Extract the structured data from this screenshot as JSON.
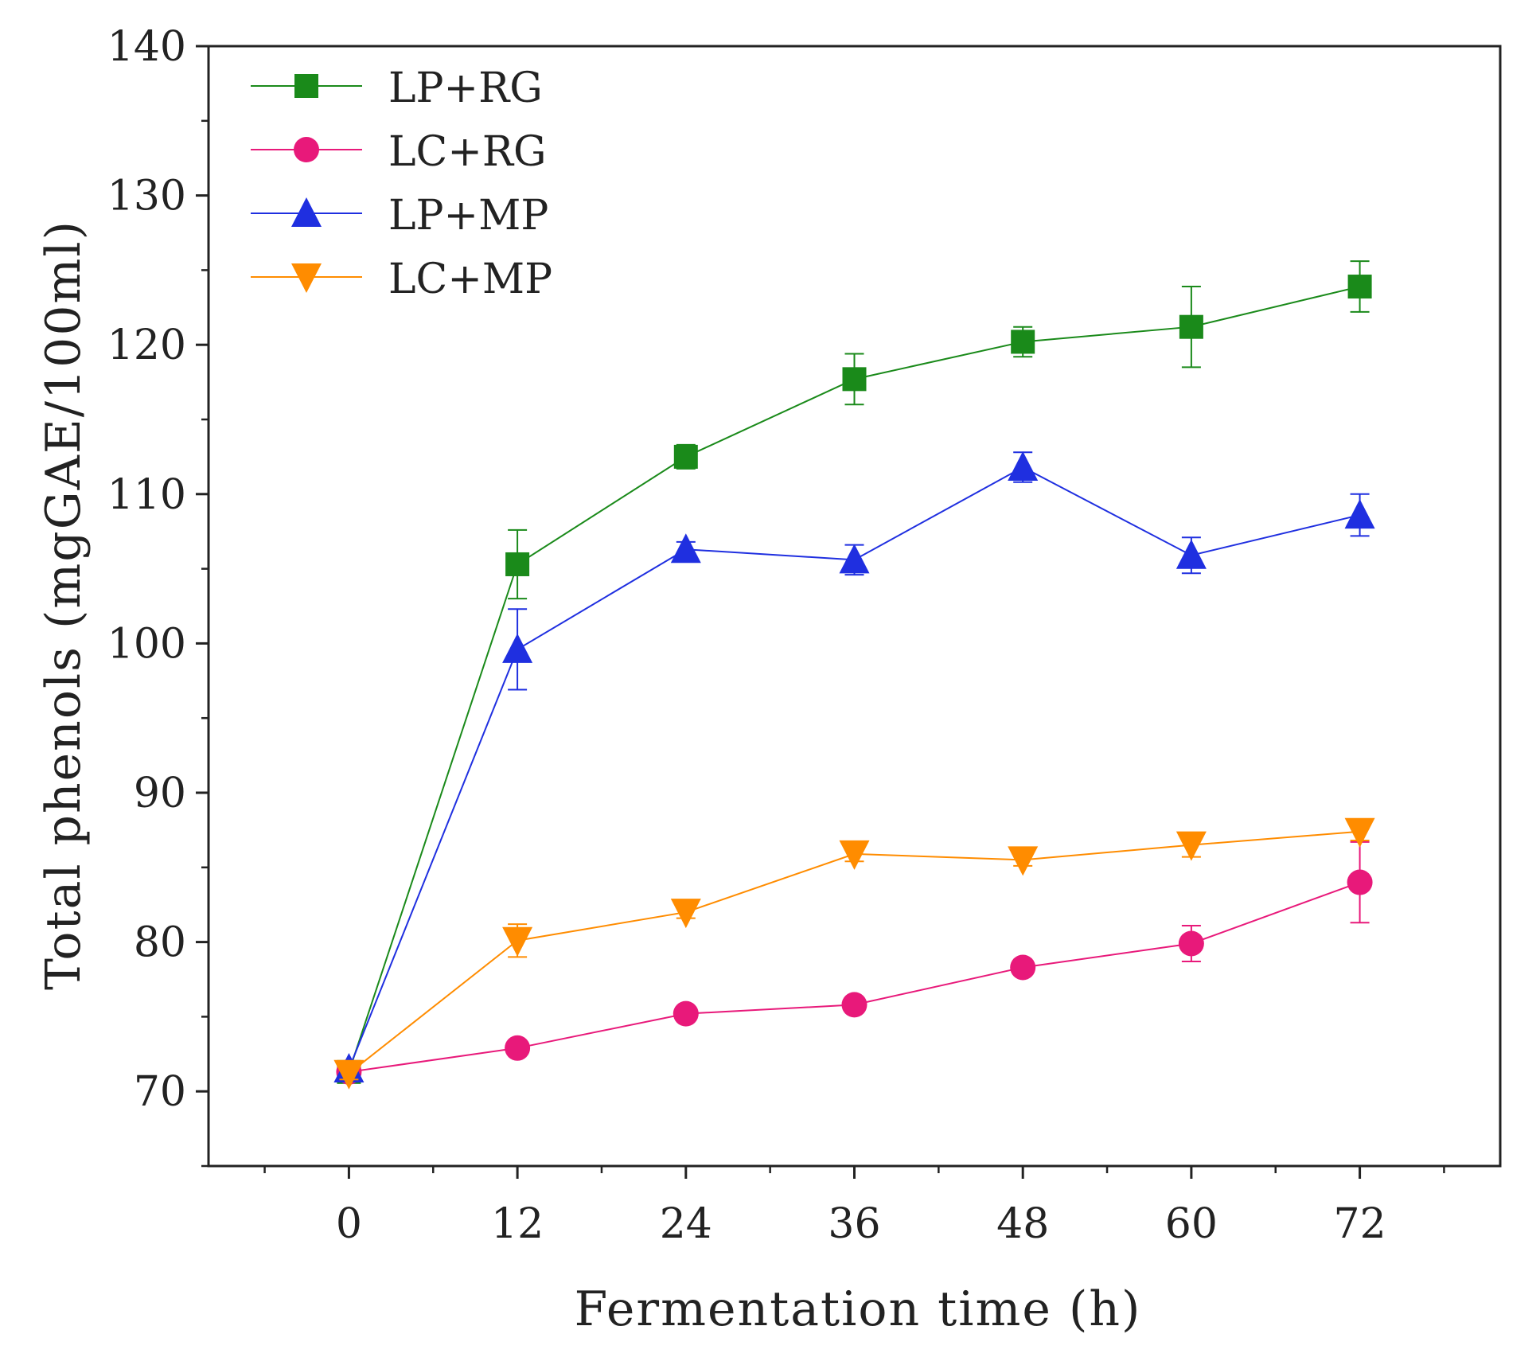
{
  "chart_data": {
    "type": "line",
    "xlabel": "Fermentation time (h)",
    "ylabel": "Total phenols (mgGAE/100ml)",
    "xlim": [
      -10,
      82
    ],
    "ylim": [
      65,
      140
    ],
    "x_ticks": [
      0,
      12,
      24,
      36,
      48,
      60,
      72
    ],
    "y_ticks": [
      70,
      80,
      90,
      100,
      110,
      120,
      130,
      140
    ],
    "legend_position": "top-left",
    "grid": false,
    "series": [
      {
        "name": "LP+RG",
        "color": "#1a8a1a",
        "marker": "square",
        "x": [
          0,
          12,
          24,
          36,
          48,
          60,
          72
        ],
        "y": [
          71.3,
          105.3,
          112.5,
          117.7,
          120.2,
          121.2,
          123.9
        ],
        "error": [
          0.5,
          2.3,
          0.8,
          1.7,
          1.0,
          2.7,
          1.7
        ]
      },
      {
        "name": "LC+RG",
        "color": "#e8197a",
        "marker": "circle",
        "x": [
          0,
          12,
          24,
          36,
          48,
          60,
          72
        ],
        "y": [
          71.3,
          72.9,
          75.2,
          75.8,
          78.3,
          79.9,
          84.0
        ],
        "error": [
          0.4,
          0.4,
          0.4,
          0.4,
          0.4,
          1.2,
          2.7
        ]
      },
      {
        "name": "LP+MP",
        "color": "#1f2fe0",
        "marker": "triangle-up",
        "x": [
          0,
          12,
          24,
          36,
          48,
          60,
          72
        ],
        "y": [
          71.5,
          99.6,
          106.3,
          105.6,
          111.8,
          105.9,
          108.6
        ],
        "error": [
          0.5,
          2.7,
          0.5,
          1.0,
          1.0,
          1.2,
          1.4
        ]
      },
      {
        "name": "LC+MP",
        "color": "#ff8c00",
        "marker": "triangle-down",
        "x": [
          0,
          12,
          24,
          36,
          48,
          60,
          72
        ],
        "y": [
          71.2,
          80.1,
          82.0,
          85.9,
          85.5,
          86.5,
          87.4
        ],
        "error": [
          0.4,
          1.1,
          0.4,
          0.5,
          0.4,
          0.8,
          0.6
        ]
      }
    ]
  }
}
